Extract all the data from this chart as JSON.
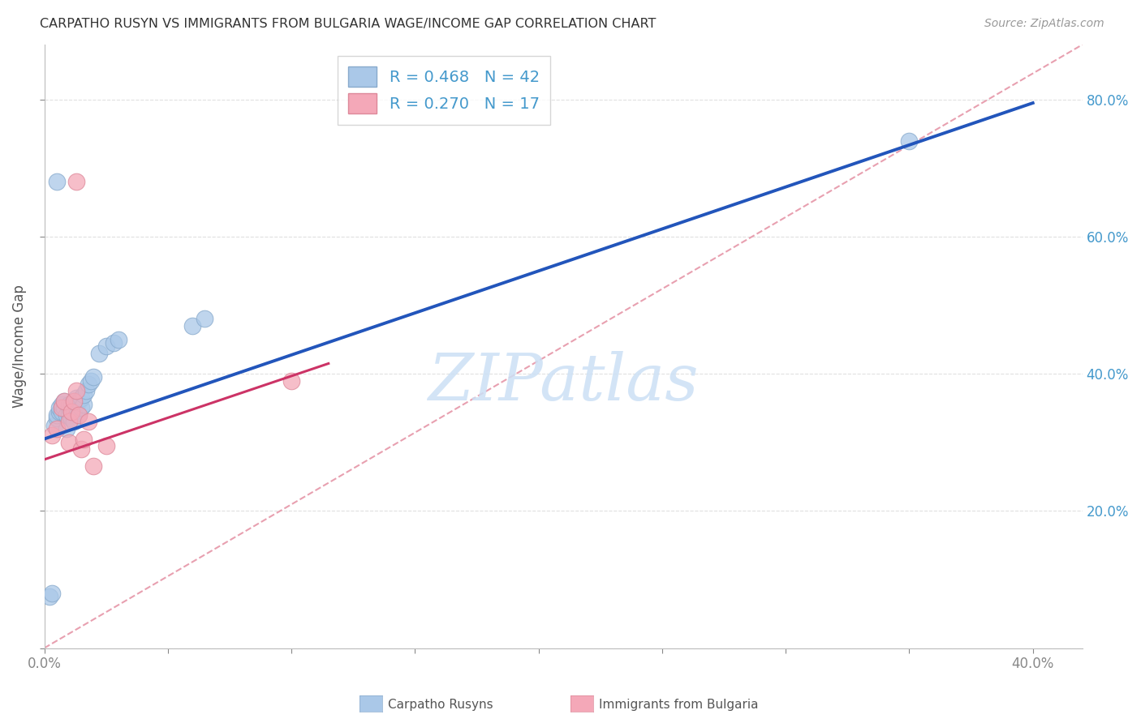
{
  "title": "CARPATHO RUSYN VS IMMIGRANTS FROM BULGARIA WAGE/INCOME GAP CORRELATION CHART",
  "source": "Source: ZipAtlas.com",
  "ylabel": "Wage/Income Gap",
  "xlim": [
    0.0,
    0.42
  ],
  "ylim": [
    0.0,
    0.88
  ],
  "xtick_positions": [
    0.0,
    0.05,
    0.1,
    0.15,
    0.2,
    0.25,
    0.3,
    0.35,
    0.4
  ],
  "xtick_labels": [
    "0.0%",
    "",
    "",
    "",
    "",
    "",
    "",
    "",
    "40.0%"
  ],
  "ytick_positions": [
    0.0,
    0.2,
    0.4,
    0.6,
    0.8
  ],
  "ytick_labels_right": [
    "",
    "20.0%",
    "40.0%",
    "60.0%",
    "80.0%"
  ],
  "blue_x": [
    0.002,
    0.003,
    0.004,
    0.005,
    0.005,
    0.006,
    0.006,
    0.007,
    0.007,
    0.008,
    0.008,
    0.009,
    0.009,
    0.01,
    0.01,
    0.01,
    0.011,
    0.011,
    0.011,
    0.012,
    0.012,
    0.012,
    0.013,
    0.013,
    0.014,
    0.014,
    0.015,
    0.015,
    0.016,
    0.016,
    0.017,
    0.018,
    0.019,
    0.02,
    0.022,
    0.025,
    0.028,
    0.03,
    0.06,
    0.065,
    0.35,
    0.005
  ],
  "blue_y": [
    0.075,
    0.08,
    0.325,
    0.335,
    0.34,
    0.345,
    0.35,
    0.345,
    0.355,
    0.35,
    0.36,
    0.32,
    0.34,
    0.35,
    0.34,
    0.355,
    0.335,
    0.345,
    0.355,
    0.33,
    0.345,
    0.36,
    0.35,
    0.365,
    0.34,
    0.36,
    0.35,
    0.365,
    0.355,
    0.37,
    0.375,
    0.385,
    0.39,
    0.395,
    0.43,
    0.44,
    0.445,
    0.45,
    0.47,
    0.48,
    0.74,
    0.68
  ],
  "pink_x": [
    0.003,
    0.005,
    0.007,
    0.008,
    0.01,
    0.01,
    0.011,
    0.012,
    0.013,
    0.014,
    0.015,
    0.016,
    0.018,
    0.02,
    0.025,
    0.1,
    0.013
  ],
  "pink_y": [
    0.31,
    0.32,
    0.35,
    0.36,
    0.3,
    0.33,
    0.345,
    0.36,
    0.375,
    0.34,
    0.29,
    0.305,
    0.33,
    0.265,
    0.295,
    0.39,
    0.68
  ],
  "blue_color": "#aac8e8",
  "pink_color": "#f4a8b8",
  "blue_line_color": "#2255bb",
  "pink_line_color": "#cc3366",
  "blue_line_x": [
    0.0,
    0.4
  ],
  "blue_line_y": [
    0.305,
    0.795
  ],
  "pink_line_x": [
    0.0,
    0.115
  ],
  "pink_line_y": [
    0.275,
    0.415
  ],
  "diag_line_color": "#e8a0b0",
  "diag_line_style": "--",
  "watermark_text": "ZIPatlas",
  "watermark_color": "#cce0f5",
  "legend_blue_label": "R = 0.468   N = 42",
  "legend_pink_label": "R = 0.270   N = 17",
  "bottom_legend_blue": "Carpatho Rusyns",
  "bottom_legend_pink": "Immigrants from Bulgaria",
  "background_color": "#ffffff",
  "grid_color": "#e0e0e0",
  "right_tick_color": "#4499cc"
}
